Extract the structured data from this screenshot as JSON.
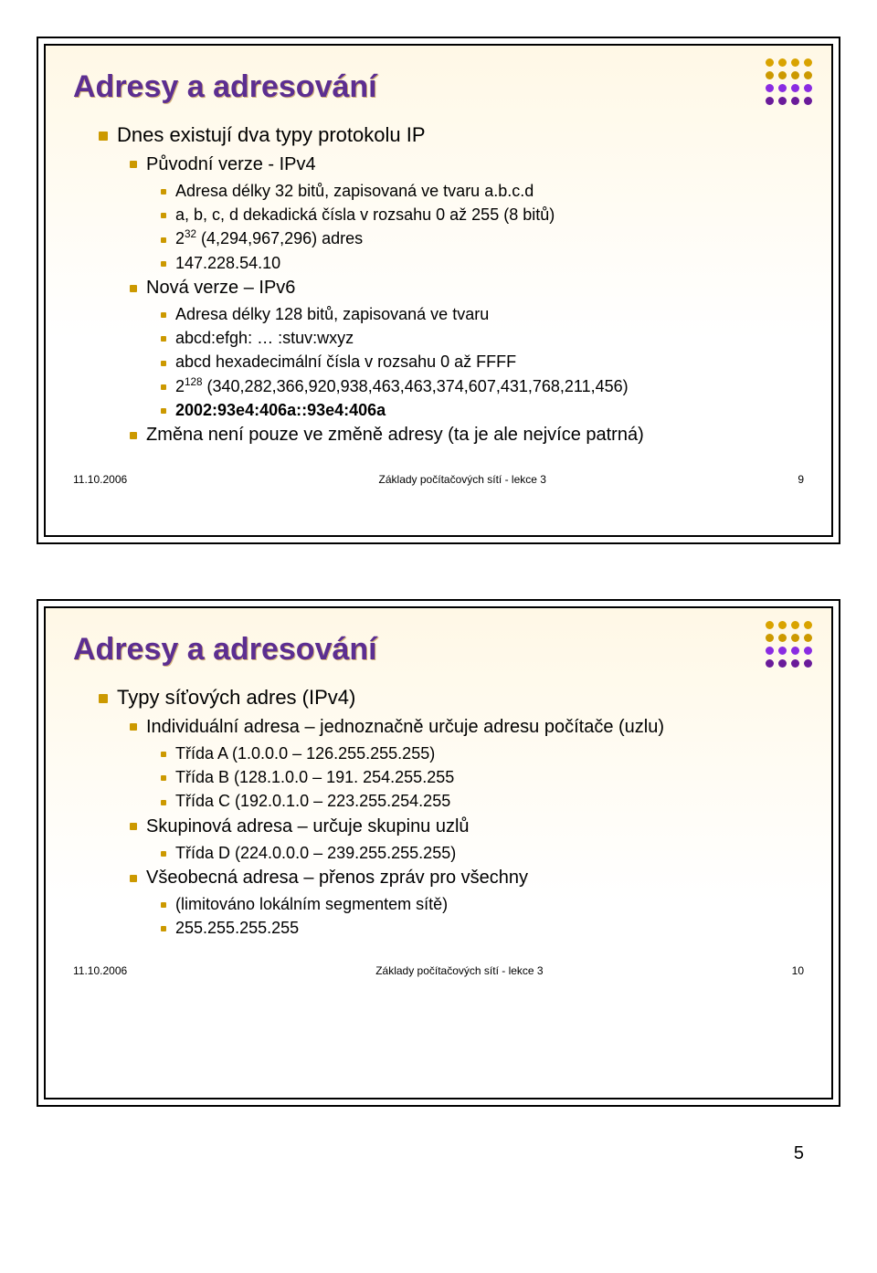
{
  "colors": {
    "title_color": "#5c2e91",
    "bullet_color": "#cc9900",
    "border_color": "#000000",
    "bg_gradient_top": "#fff8e6",
    "bg_gradient_bottom": "#ffffff",
    "dot_row1": "#d9a300",
    "dot_row2": "#cc9900",
    "dot_row3": "#8a2be2",
    "dot_row4": "#6a1b9a"
  },
  "slide1": {
    "title": "Adresy a adresování",
    "items": [
      {
        "level": 1,
        "text": "Dnes existují dva typy protokolu IP"
      },
      {
        "level": 2,
        "text": "Původní verze - IPv4"
      },
      {
        "level": 3,
        "text": "Adresa délky 32 bitů, zapisovaná ve tvaru a.b.c.d"
      },
      {
        "level": 3,
        "text": "a, b, c, d dekadická čísla v rozsahu 0 až 255 (8 bitů)"
      },
      {
        "level": 3,
        "text_pre": "2",
        "sup": "32",
        "text_post": " (4,294,967,296) adres"
      },
      {
        "level": 3,
        "text": "147.228.54.10"
      },
      {
        "level": 2,
        "text": "Nová verze – IPv6"
      },
      {
        "level": 3,
        "text": "Adresa délky 128 bitů, zapisovaná ve tvaru"
      },
      {
        "level": 3,
        "text": "abcd:efgh: … :stuv:wxyz"
      },
      {
        "level": 3,
        "text": "abcd hexadecimální čísla v rozsahu 0 až FFFF"
      },
      {
        "level": 3,
        "text_pre": "2",
        "sup": "128",
        "text_post": " (340,282,366,920,938,463,463,374,607,431,768,211,456)"
      },
      {
        "level": 3,
        "text": "2002:93e4:406a::93e4:406a",
        "bold": true
      },
      {
        "level": 2,
        "text": "Změna není pouze ve změně adresy (ta je ale nejvíce patrná)"
      }
    ],
    "footer": {
      "date": "11.10.2006",
      "center": "Základy počítačových sítí - lekce 3",
      "num": "9"
    }
  },
  "slide2": {
    "title": "Adresy a adresování",
    "items": [
      {
        "level": 1,
        "text": "Typy síťových adres (IPv4)"
      },
      {
        "level": 2,
        "text": "Individuální adresa – jednoznačně určuje adresu počítače (uzlu)"
      },
      {
        "level": 3,
        "text": "Třída A (1.0.0.0 – 126.255.255.255)"
      },
      {
        "level": 3,
        "text": "Třída B (128.1.0.0 – 191. 254.255.255"
      },
      {
        "level": 3,
        "text": "Třída C (192.0.1.0 – 223.255.254.255"
      },
      {
        "level": 2,
        "text": "Skupinová adresa – určuje skupinu uzlů"
      },
      {
        "level": 3,
        "text": "Třída D (224.0.0.0 – 239.255.255.255)"
      },
      {
        "level": 2,
        "text": "Všeobecná adresa – přenos zpráv pro všechny"
      },
      {
        "level": 3,
        "text": "(limitováno lokálním segmentem sítě)"
      },
      {
        "level": 3,
        "text": "255.255.255.255"
      }
    ],
    "footer": {
      "date": "11.10.2006",
      "center": "Základy počítačových sítí - lekce 3",
      "num": "10"
    }
  },
  "page_number": "5"
}
